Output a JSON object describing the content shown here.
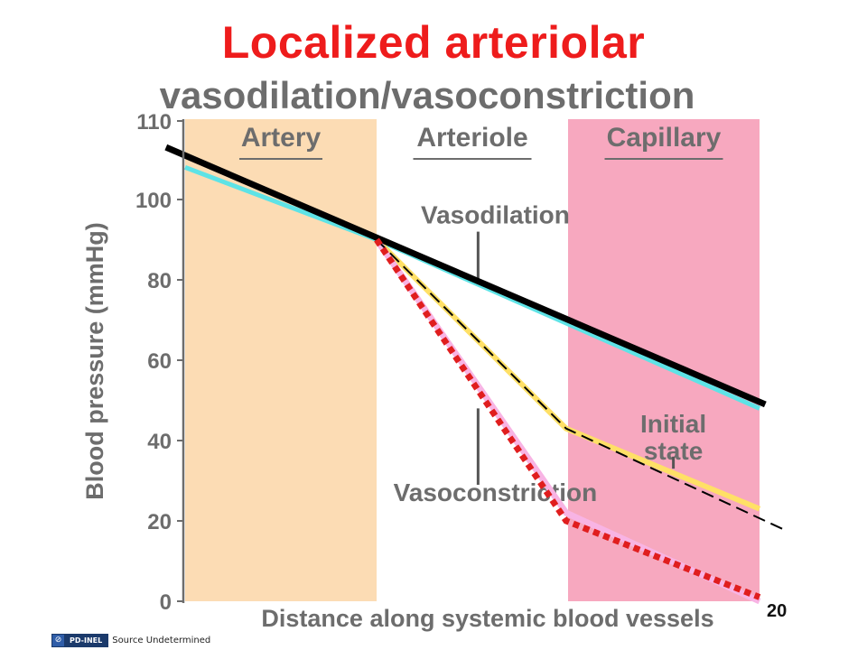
{
  "title": "Localized arteriolar",
  "page_number": "20",
  "footer": {
    "badge_label": "PD-INEL",
    "source_text": "Source Undetermined"
  },
  "chart_data": {
    "type": "line",
    "title": "vasodilation/vasoconstriction",
    "xlabel": "Distance along systemic blood vessels",
    "ylabel": "Blood pressure (mmHg)",
    "ylim": [
      0,
      110
    ],
    "yticks": [
      0,
      20,
      40,
      60,
      80,
      100,
      110
    ],
    "regions": [
      {
        "label": "Artery",
        "x_range": [
          0,
          1
        ],
        "color": "#fcdcb4"
      },
      {
        "label": "Arteriole",
        "x_range": [
          1,
          2
        ],
        "color": "#ffffff"
      },
      {
        "label": "Capillary",
        "x_range": [
          2,
          3
        ],
        "color": "#f7a8bf"
      }
    ],
    "annotations": [
      {
        "text": "Vasodilation",
        "x": 1.62,
        "y": 94,
        "pointer_y": [
          80,
          92
        ]
      },
      {
        "text": "Vasoconstriction",
        "x": 1.62,
        "y": 25,
        "pointer_y": [
          29,
          48
        ]
      },
      {
        "text": "Initial state",
        "x": 2.55,
        "y": 42,
        "pointer_y": [
          33,
          36
        ]
      }
    ],
    "series": [
      {
        "style": "cyan",
        "color": "#5ee3e6",
        "x": [
          0,
          1,
          2,
          3
        ],
        "y": [
          108,
          90,
          69,
          48
        ]
      },
      {
        "style": "yellow",
        "color": "#ffe066",
        "x": [
          1,
          1.99,
          3
        ],
        "y": [
          90,
          43,
          23
        ]
      },
      {
        "style": "pink",
        "color": "#f8b4e4",
        "x": [
          1,
          1.99,
          3
        ],
        "y": [
          90,
          22,
          0
        ]
      },
      {
        "style": "black-thick",
        "color": "#000000",
        "x": [
          -0.1,
          3.03
        ],
        "y": [
          113,
          49
        ]
      },
      {
        "style": "black-dashed",
        "color": "#000000",
        "x": [
          1,
          1.99,
          3.12
        ],
        "y": [
          90,
          43,
          18
        ]
      },
      {
        "style": "red-dotted",
        "color": "#e01e1e",
        "x": [
          1,
          1.99,
          3
        ],
        "y": [
          90,
          20,
          1
        ]
      }
    ]
  }
}
